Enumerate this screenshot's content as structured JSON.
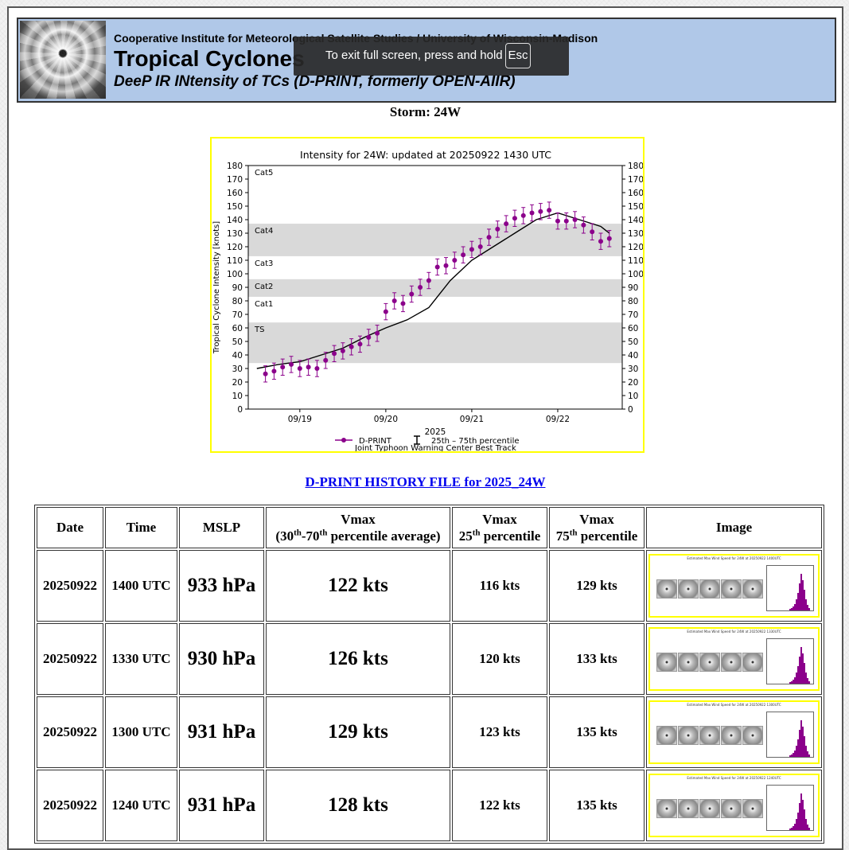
{
  "header": {
    "institution": "Cooperative Institute for Meteorological Satellite Studies / University of Wisconsin-Madison",
    "title": "Tropical Cyclones",
    "subtitle": "DeeP IR INtensity of TCs (D-PRINT, formerly OPEN-AIIR)"
  },
  "toast": {
    "message": "To exit full screen, press and hold",
    "key": "Esc"
  },
  "storm_label": "Storm: 24W",
  "history_link": "D-PRINT HISTORY FILE for 2025_24W",
  "chart_data": {
    "type": "line",
    "title": "Intensity for 24W: updated at 20250922 1430 UTC",
    "ylabel": "Tropical Cyclone Intensity [knots]",
    "xlabel": "2025",
    "ylim": [
      0,
      180
    ],
    "yticks": [
      0,
      10,
      20,
      30,
      40,
      50,
      60,
      70,
      80,
      90,
      100,
      110,
      120,
      130,
      140,
      150,
      160,
      170,
      180
    ],
    "xticks": [
      "09/19",
      "09/20",
      "09/21",
      "09/22"
    ],
    "grid": false,
    "categories": [
      {
        "label": "TS",
        "range": [
          34,
          64
        ],
        "shaded": true
      },
      {
        "label": "Cat1",
        "range": [
          64,
          83
        ],
        "shaded": false
      },
      {
        "label": "Cat2",
        "range": [
          83,
          96
        ],
        "shaded": true
      },
      {
        "label": "Cat3",
        "range": [
          96,
          113
        ],
        "shaded": false
      },
      {
        "label": "Cat4",
        "range": [
          113,
          137
        ],
        "shaded": true
      },
      {
        "label": "Cat5",
        "range": [
          137,
          180
        ],
        "shaded": false
      }
    ],
    "series": [
      {
        "name": "D-PRINT",
        "color": "#8b008b",
        "x": [
          18.6,
          18.7,
          18.8,
          18.9,
          19.0,
          19.1,
          19.2,
          19.3,
          19.4,
          19.5,
          19.6,
          19.7,
          19.8,
          19.9,
          20.0,
          20.1,
          20.2,
          20.3,
          20.4,
          20.5,
          20.6,
          20.7,
          20.8,
          20.9,
          21.0,
          21.1,
          21.2,
          21.3,
          21.4,
          21.5,
          21.6,
          21.7,
          21.8,
          21.9,
          22.0,
          22.1,
          22.2,
          22.3,
          22.4,
          22.5,
          22.6
        ],
        "y": [
          26,
          28,
          31,
          33,
          30,
          31,
          30,
          36,
          41,
          43,
          46,
          48,
          53,
          56,
          72,
          80,
          78,
          85,
          90,
          95,
          105,
          106,
          110,
          114,
          118,
          120,
          127,
          133,
          137,
          141,
          143,
          145,
          146,
          147,
          139,
          139,
          140,
          136,
          131,
          124,
          126
        ]
      },
      {
        "name": "Joint Typhoon Warning Center Best Track",
        "color": "#000000",
        "x": [
          18.5,
          18.75,
          19.0,
          19.25,
          19.5,
          19.75,
          20.0,
          20.25,
          20.5,
          20.75,
          21.0,
          21.25,
          21.5,
          21.75,
          22.0,
          22.25,
          22.5,
          22.6
        ],
        "y": [
          30,
          33,
          35,
          40,
          45,
          53,
          60,
          66,
          75,
          95,
          110,
          120,
          130,
          140,
          145,
          140,
          135,
          130
        ]
      }
    ],
    "legend": {
      "placement": "bottom",
      "entries": [
        "D-PRINT",
        "25th – 75th percentile",
        "Joint Typhoon Warning Center Best Track"
      ]
    }
  },
  "table": {
    "headers": {
      "date": "Date",
      "time": "Time",
      "mslp": "MSLP",
      "vmax_line1": "Vmax",
      "vmax_line2a": "(30",
      "vmax_sup1": "th",
      "vmax_line2b": "-70",
      "vmax_sup2": "th",
      "vmax_line2c": " percentile average)",
      "p25_line1": "Vmax",
      "p25_line2a": "25",
      "p25_sup": "th",
      "p25_line2b": " percentile",
      "p75_line1": "Vmax",
      "p75_line2a": "75",
      "p75_sup": "th",
      "p75_line2b": " percentile",
      "image": "Image"
    },
    "rows": [
      {
        "date": "20250922",
        "time": "1400 UTC",
        "mslp": "933 hPa",
        "vmax": "122 kts",
        "p25": "116 kts",
        "p75": "129 kts",
        "img_title": "Estimated Max Wind Speed for 24W at 20250922 1400UTC"
      },
      {
        "date": "20250922",
        "time": "1330 UTC",
        "mslp": "930 hPa",
        "vmax": "126 kts",
        "p25": "120 kts",
        "p75": "133 kts",
        "img_title": "Estimated Max Wind Speed for 24W at 20250922 1330UTC"
      },
      {
        "date": "20250922",
        "time": "1300 UTC",
        "mslp": "931 hPa",
        "vmax": "129 kts",
        "p25": "123 kts",
        "p75": "135 kts",
        "img_title": "Estimated Max Wind Speed for 24W at 20250922 1300UTC"
      },
      {
        "date": "20250922",
        "time": "1240 UTC",
        "mslp": "931 hPa",
        "vmax": "128 kts",
        "p25": "122 kts",
        "p75": "135 kts",
        "img_title": "Estimated Max Wind Speed for 24W at 20250922 1240UTC"
      }
    ]
  }
}
